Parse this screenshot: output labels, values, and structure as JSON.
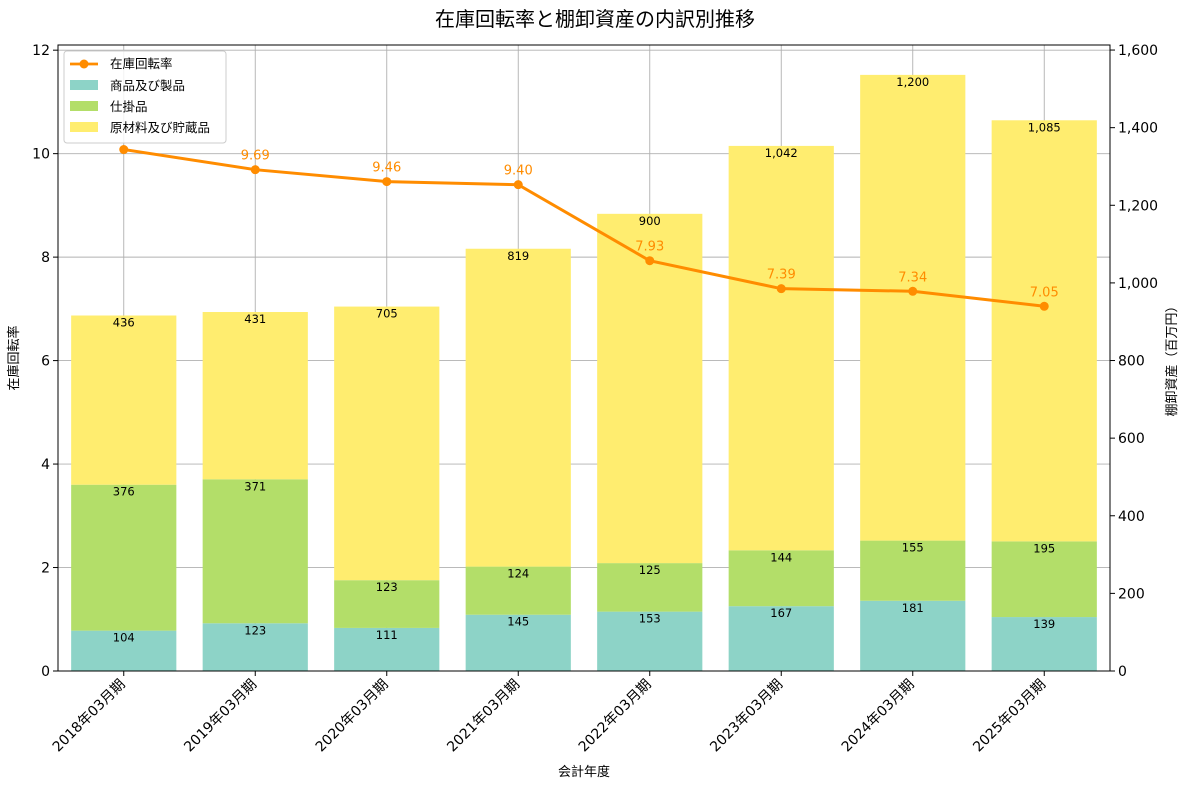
{
  "chart_data": {
    "type": "bar",
    "title": "在庫回転率と棚卸資産の内訳別推移",
    "xlabel": "会計年度",
    "ylabel_left": "在庫回転率",
    "ylabel_right": "棚卸資産（百万円）",
    "ylim_left": [
      0,
      12.1
    ],
    "ylim_right": [
      0,
      1613
    ],
    "yticks_left": [
      0,
      2,
      4,
      6,
      8,
      10,
      12
    ],
    "yticks_right": [
      0,
      200,
      400,
      600,
      800,
      1000,
      1200,
      1400,
      1600
    ],
    "yticks_right_labels": [
      "0",
      "200",
      "400",
      "600",
      "800",
      "1,000",
      "1,200",
      "1,400",
      "1,600"
    ],
    "grid": true,
    "legend_position": "top-left",
    "categories": [
      "2018年03月期",
      "2019年03月期",
      "2020年03月期",
      "2021年03月期",
      "2022年03月期",
      "2023年03月期",
      "2024年03月期",
      "2025年03月期"
    ],
    "series": [
      {
        "name": "商品及び製品",
        "axis": "right",
        "kind": "stacked-bar",
        "color": "#8dd3c7",
        "values": [
          104,
          123,
          111,
          145,
          153,
          167,
          181,
          139
        ],
        "labels": [
          "104",
          "123",
          "111",
          "145",
          "153",
          "167",
          "181",
          "139"
        ]
      },
      {
        "name": "仕掛品",
        "axis": "right",
        "kind": "stacked-bar",
        "color": "#b3de69",
        "values": [
          376,
          371,
          123,
          124,
          125,
          144,
          155,
          195
        ],
        "labels": [
          "376",
          "371",
          "123",
          "124",
          "125",
          "144",
          "155",
          "195"
        ]
      },
      {
        "name": "原材料及び貯蔵品",
        "axis": "right",
        "kind": "stacked-bar",
        "color": "#ffed6f",
        "values": [
          436,
          431,
          705,
          819,
          900,
          1042,
          1200,
          1085
        ],
        "labels": [
          "436",
          "431",
          "705",
          "819",
          "900",
          "1,042",
          "1,200",
          "1,085"
        ]
      },
      {
        "name": "在庫回転率",
        "axis": "left",
        "kind": "line",
        "color": "#ff8c00",
        "values": [
          10.08,
          9.69,
          9.46,
          9.4,
          7.93,
          7.39,
          7.34,
          7.05
        ],
        "labels": [
          "",
          "9.69",
          "9.46",
          "9.40",
          "7.93",
          "7.39",
          "7.34",
          "7.05"
        ]
      }
    ]
  }
}
